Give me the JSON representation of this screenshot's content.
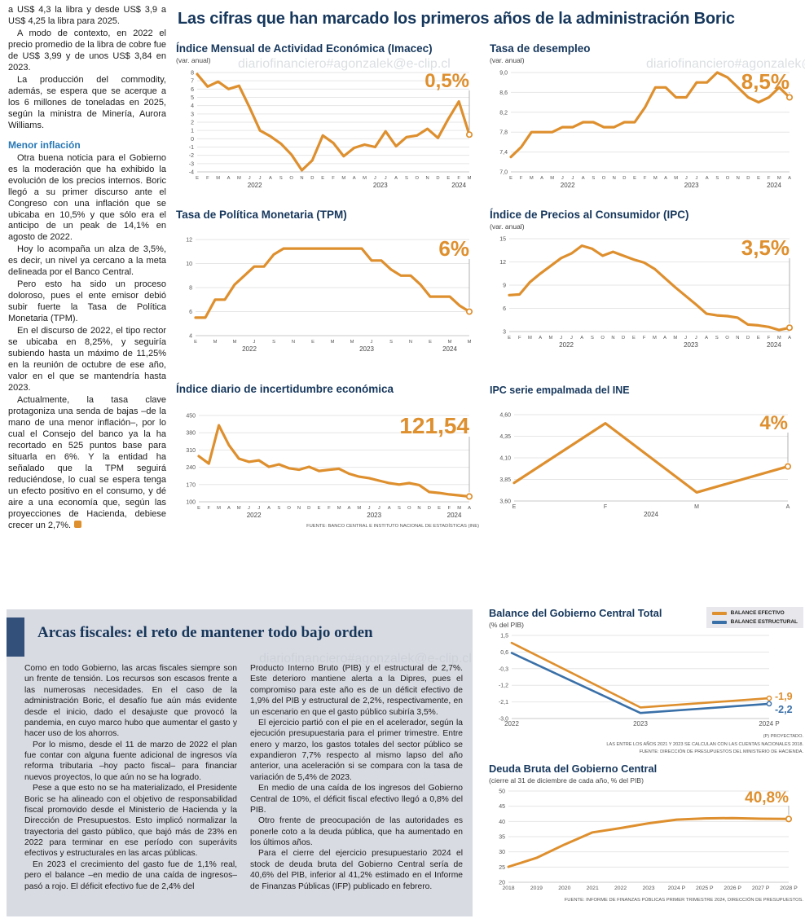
{
  "page": {
    "headline": "Las cifras que han marcado los primeros años de la administración Boric",
    "watermark": "diariofinanciero#agonzalek@e-clip.cl"
  },
  "left_article": {
    "intro": [
      "a US$ 4,3 la libra y desde US$ 3,9 a US$ 4,25 la libra para 2025.",
      "A modo de contexto, en 2022 el precio promedio de la libra de cobre fue de US$ 3,99 y de unos US$ 3,84 en 2023.",
      "La producción del commodity, además, se espera que se acerque a los 6 millones de toneladas en 2025, según la ministra de Minería, Aurora Williams."
    ],
    "subhead": "Menor inflación",
    "body": [
      "Otra buena noticia para el Gobierno es la moderación que ha exhibido la evolución de los precios internos. Boric llegó a su primer discurso ante el Congreso con una inflación que se ubicaba en 10,5% y que sólo era el anticipo de un peak de 14,1% en agosto de 2022.",
      "Hoy lo acompaña un alza de 3,5%, es decir, un nivel ya cercano a la meta delineada por el Banco Central.",
      "Pero esto ha sido un proceso doloroso, pues el ente emisor debió subir fuerte la Tasa de Política Monetaria (TPM).",
      "En el discurso de 2022, el tipo rector se ubicaba en 8,25%, y seguiría subiendo hasta un máximo de 11,25% en la reunión de octubre de ese año, valor en el que se mantendría hasta 2023.",
      "Actualmente, la tasa clave protagoniza una senda de bajas –de la mano de una menor inflación–, por lo cual el Consejo del banco ya la ha recortado en 525 puntos base para situarla en 6%. Y la entidad ha señalado que la TPM seguirá reduciéndose, lo cual se espera tenga un efecto positivo en el consumo, y dé aire a una economía que, según las proyecciones de Hacienda, debiese crecer un 2,7%."
    ]
  },
  "fiscal_article": {
    "title": "Arcas fiscales: el reto de mantener todo bajo orden",
    "col1": [
      "Como en todo Gobierno, las arcas fiscales siempre son un frente de tensión. Los recursos son escasos frente a las numerosas necesidades. En el caso de la administración Boric, el desafío fue aún más evidente desde el inicio, dado el desajuste que provocó la pandemia, en cuyo marco hubo que aumentar el gasto y hacer uso de los ahorros.",
      "Por lo mismo, desde el 11 de marzo de 2022 el plan fue contar con alguna fuente adicional de ingresos vía reforma tributaria –hoy pacto fiscal– para financiar nuevos proyectos, lo que aún no se ha logrado.",
      "Pese a que esto no se ha materializado, el Presidente Boric se ha alineado con el objetivo de responsabilidad fiscal promovido desde el Ministerio de Hacienda y la Dirección de Presupuestos. Esto implicó normalizar la trayectoria del gasto público, que bajó más de 23% en 2022 para terminar en ese período con superávits efectivos y estructurales en las arcas públicas.",
      "En 2023 el crecimiento del gasto fue de 1,1% real, pero el balance –en medio de una caída de ingresos– pasó a rojo. El déficit efectivo fue de 2,4% del"
    ],
    "col2": [
      "Producto Interno Bruto (PIB) y el estructural de 2,7%. Este deterioro mantiene alerta a la Dipres, pues el compromiso para este año es de un déficit efectivo de 1,9% del PIB y estructural de 2,2%, respectivamente, en un escenario en que el gasto público subiría 3,5%.",
      "El ejercicio partió con el pie en el acelerador, según la ejecución presupuestaria para el primer trimestre. Entre enero y marzo, los gastos totales del sector público se expandieron 7,7% respecto al mismo lapso del año anterior, una aceleración si se compara con la tasa de variación de 5,4% de 2023.",
      "En medio de una caída de los ingresos del Gobierno Central de 10%, el déficit fiscal efectivo llegó a 0,8% del PIB.",
      "Otro frente de preocupación de las autoridades es ponerle coto a la deuda pública, que ha aumentado en los últimos años.",
      "Para el cierre del ejercicio presupuestario 2024 el stock de deuda bruta del Gobierno Central sería de 40,6% del PIB, inferior al 41,2% estimado en el Informe de Finanzas Públicas (IFP) publicado en febrero."
    ]
  },
  "chart_data": [
    {
      "id": "imacec",
      "type": "line",
      "title": "Índice Mensual de Actividad Económica (Imacec)",
      "subtitle": "(var. anual)",
      "value_label": "0,5%",
      "color": "#DE8F2E",
      "ylim": [
        -4,
        8
      ],
      "yticks": [
        "8",
        "7",
        "6",
        "5",
        "4",
        "3",
        "2",
        "1",
        "0",
        "-1",
        "-2",
        "-3",
        "-4"
      ],
      "x_labels": [
        "E",
        "F",
        "M",
        "A",
        "M",
        "J",
        "J",
        "A",
        "S",
        "O",
        "N",
        "D",
        "E",
        "F",
        "M",
        "A",
        "M",
        "J",
        "J",
        "A",
        "S",
        "O",
        "N",
        "D",
        "E",
        "F",
        "M"
      ],
      "year_ticks": [
        {
          "label": "2022",
          "index": 5.5
        },
        {
          "label": "2023",
          "index": 17.5
        },
        {
          "label": "2024",
          "index": 25
        }
      ],
      "values": [
        7.8,
        6.3,
        6.9,
        6.0,
        6.4,
        3.8,
        1.0,
        0.3,
        -0.6,
        -1.9,
        -3.8,
        -2.6,
        0.4,
        -0.5,
        -2.1,
        -1.1,
        -0.7,
        -1.0,
        0.9,
        -0.9,
        0.2,
        0.4,
        1.2,
        0.1,
        2.4,
        4.5,
        0.5
      ]
    },
    {
      "id": "desempleo",
      "type": "line",
      "title": "Tasa de desempleo",
      "subtitle": "(var. anual)",
      "value_label": "8,5%",
      "color": "#DE8F2E",
      "ylim": [
        7.0,
        9.0
      ],
      "yticks": [
        "9,0",
        "8,6",
        "8,2",
        "7,8",
        "7,4",
        "7,0"
      ],
      "x_labels": [
        "E",
        "F",
        "M",
        "A",
        "M",
        "J",
        "J",
        "A",
        "S",
        "O",
        "N",
        "D",
        "E",
        "F",
        "M",
        "A",
        "M",
        "J",
        "J",
        "A",
        "S",
        "O",
        "N",
        "D",
        "E",
        "F",
        "M",
        "A"
      ],
      "year_ticks": [
        {
          "label": "2022",
          "index": 5.5
        },
        {
          "label": "2023",
          "index": 17.5
        },
        {
          "label": "2024",
          "index": 25.5
        }
      ],
      "values": [
        7.3,
        7.5,
        7.8,
        7.8,
        7.8,
        7.9,
        7.9,
        8.0,
        8.0,
        7.9,
        7.9,
        8.0,
        8.0,
        8.3,
        8.7,
        8.7,
        8.5,
        8.5,
        8.8,
        8.8,
        9.0,
        8.9,
        8.7,
        8.5,
        8.4,
        8.5,
        8.7,
        8.5
      ]
    },
    {
      "id": "tpm",
      "type": "line",
      "title": "Tasa de Política Monetaria (TPM)",
      "value_label": "6%",
      "color": "#DE8F2E",
      "ylim": [
        4,
        12
      ],
      "yticks": [
        "12",
        "10",
        "8",
        "6",
        "4"
      ],
      "x_labels": [
        "E",
        "",
        "M",
        "",
        "M",
        "",
        "J",
        "",
        "S",
        "",
        "N",
        "",
        "E",
        "",
        "M",
        "",
        "M",
        "",
        "J",
        "",
        "S",
        "",
        "N",
        "",
        "E",
        "",
        "M",
        "",
        "M"
      ],
      "year_ticks": [
        {
          "label": "2022",
          "index": 5.5
        },
        {
          "label": "2023",
          "index": 17.5
        },
        {
          "label": "2024",
          "index": 26
        }
      ],
      "values": [
        5.5,
        5.5,
        7.0,
        7.0,
        8.25,
        9.0,
        9.75,
        9.75,
        10.75,
        11.25,
        11.25,
        11.25,
        11.25,
        11.25,
        11.25,
        11.25,
        11.25,
        11.25,
        10.25,
        10.25,
        9.5,
        9.0,
        9.0,
        8.25,
        7.25,
        7.25,
        7.25,
        6.5,
        6.0
      ]
    },
    {
      "id": "ipc",
      "type": "line",
      "title": "Índice de Precios al Consumidor (IPC)",
      "subtitle": "(var. anual)",
      "value_label": "3,5%",
      "color": "#DE8F2E",
      "ylim": [
        3,
        15
      ],
      "yticks": [
        "15",
        "12",
        "9",
        "6",
        "3"
      ],
      "x_labels": [
        "E",
        "F",
        "M",
        "A",
        "M",
        "J",
        "J",
        "A",
        "S",
        "O",
        "N",
        "D",
        "E",
        "F",
        "M",
        "A",
        "M",
        "J",
        "J",
        "A",
        "S",
        "O",
        "N",
        "D",
        "E",
        "F",
        "M",
        "A"
      ],
      "year_ticks": [
        {
          "label": "2022",
          "index": 5.5
        },
        {
          "label": "2023",
          "index": 17.5
        },
        {
          "label": "2024",
          "index": 25.5
        }
      ],
      "values": [
        7.7,
        7.8,
        9.4,
        10.5,
        11.5,
        12.5,
        13.1,
        14.1,
        13.7,
        12.8,
        13.3,
        12.8,
        12.3,
        11.9,
        11.1,
        9.9,
        8.7,
        7.6,
        6.5,
        5.3,
        5.1,
        5.0,
        4.8,
        3.9,
        3.8,
        3.6,
        3.2,
        3.5
      ]
    },
    {
      "id": "incertidumbre",
      "type": "line",
      "title": "Índice diario de incertidumbre económica",
      "value_label": "121,54",
      "color": "#DE8F2E",
      "ylim": [
        100,
        450
      ],
      "yticks": [
        "450",
        "380",
        "310",
        "240",
        "170",
        "100"
      ],
      "x_labels": [
        "E",
        "F",
        "M",
        "A",
        "M",
        "J",
        "J",
        "A",
        "S",
        "O",
        "N",
        "D",
        "E",
        "F",
        "M",
        "A",
        "M",
        "J",
        "J",
        "A",
        "S",
        "O",
        "N",
        "D",
        "E",
        "F",
        "M",
        "A"
      ],
      "year_ticks": [
        {
          "label": "2022",
          "index": 5.5
        },
        {
          "label": "2023",
          "index": 17.5
        },
        {
          "label": "2024",
          "index": 25.5
        }
      ],
      "values": [
        285,
        255,
        410,
        330,
        275,
        262,
        268,
        242,
        252,
        236,
        230,
        242,
        225,
        230,
        234,
        214,
        202,
        196,
        186,
        176,
        170,
        176,
        168,
        140,
        136,
        130,
        126,
        121.54
      ],
      "source": "FUENTE: BANCO CENTRAL E INSTITUTO NACIONAL DE ESTADÍSTICAS (INE)"
    },
    {
      "id": "ipc_empalmada",
      "type": "line",
      "title": "IPC serie empalmada del INE",
      "value_label": "4%",
      "color": "#DE8F2E",
      "ylim": [
        3.6,
        4.6
      ],
      "yticks": [
        "4,60",
        "4,35",
        "4,10",
        "3,85",
        "3,60"
      ],
      "x_labels": [
        "E",
        "F",
        "M",
        "A"
      ],
      "year_ticks": [
        {
          "label": "2024",
          "index": 1.5
        }
      ],
      "values": [
        3.81,
        4.5,
        3.7,
        4.0
      ]
    },
    {
      "id": "balance_gobierno",
      "type": "line",
      "title": "Balance del Gobierno Central Total",
      "subtitle": "(% del PIB)",
      "ylim": [
        -3.0,
        1.5
      ],
      "yticks": [
        "1,5",
        "0,6",
        "-0,3",
        "-1,2",
        "-2,1",
        "-3,0"
      ],
      "x_labels": [
        "2022",
        "2023",
        "2024 P"
      ],
      "series": [
        {
          "name": "BALANCE EFECTIVO",
          "color": "#DE8F2E",
          "values": [
            1.1,
            -2.4,
            -1.9
          ],
          "end_label": "-1,9",
          "label_dy": -2
        },
        {
          "name": "BALANCE ESTRUCTURAL",
          "color": "#3A70A8",
          "values": [
            0.55,
            -2.7,
            -2.2
          ],
          "end_label": "-2,2",
          "label_dy": 7
        }
      ],
      "notes": [
        "(P) PROYECTADO.",
        "LAS ENTRE LOS AÑOS 2021 Y 2023 SE CALCULAN CON LAS CUENTAS NACIONALES 2018.",
        "FUENTE: DIRECCIÓN DE PRESUPUESTOS DEL MINISTERIO DE HACIENDA."
      ]
    },
    {
      "id": "deuda_bruta",
      "type": "line",
      "title": "Deuda Bruta del Gobierno Central",
      "subtitle": "(cierre al 31 de diciembre de cada año, % del PIB)",
      "value_label": "40,8%",
      "color": "#DE8F2E",
      "ylim": [
        20,
        50
      ],
      "yticks": [
        "50",
        "45",
        "40",
        "35",
        "30",
        "25",
        "20"
      ],
      "x_labels": [
        "2018",
        "2019",
        "2020",
        "2021",
        "2022",
        "2023",
        "2024 P",
        "2025 P",
        "2026 P",
        "2027 P",
        "2028 P"
      ],
      "values": [
        25.1,
        28.0,
        32.4,
        36.4,
        37.8,
        39.4,
        40.6,
        41.0,
        41.1,
        40.9,
        40.8
      ],
      "source": "FUENTE: INFORME DE FINANZAS PÚBLICAS PRIMER TRIMESTRE 2024, DIRECCIÓN DE PRESUPUESTOS."
    }
  ]
}
